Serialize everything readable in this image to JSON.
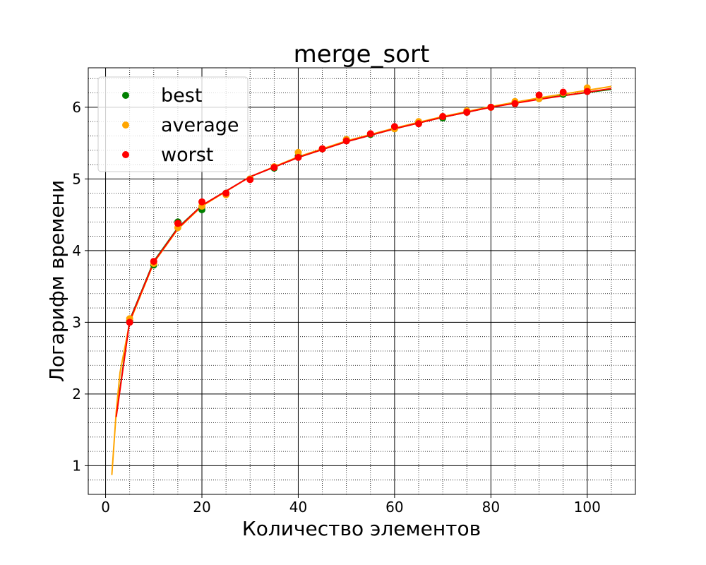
{
  "chart_data": {
    "type": "scatter",
    "title": "merge_sort",
    "xlabel": "Количество элементов",
    "ylabel": "Логарифм времени",
    "xlim": [
      -3.6,
      110
    ],
    "ylim": [
      0.6,
      6.55
    ],
    "x_ticks": [
      0,
      20,
      40,
      60,
      80,
      100
    ],
    "y_ticks": [
      1,
      2,
      3,
      4,
      5,
      6
    ],
    "x_tick_labels": [
      "0",
      "20",
      "40",
      "60",
      "80",
      "100"
    ],
    "y_tick_labels": [
      "1",
      "2",
      "3",
      "4",
      "5",
      "6"
    ],
    "grid": "major solid black, minor dotted black",
    "legend_position": "top-left",
    "series": [
      {
        "name": "best",
        "color": "#008000",
        "x": [
          5,
          10,
          15,
          20,
          25,
          30,
          35,
          40,
          45,
          50,
          55,
          60,
          65,
          70,
          75,
          80,
          85,
          90,
          95,
          100
        ],
        "y": [
          3.02,
          3.8,
          4.4,
          4.57,
          4.8,
          5.0,
          5.15,
          5.32,
          5.42,
          5.55,
          5.62,
          5.7,
          5.78,
          5.85,
          5.93,
          6.0,
          6.05,
          6.12,
          6.18,
          6.22
        ],
        "fit": {
          "x": [
            2.2,
            5,
            10,
            15,
            20,
            30,
            40,
            50,
            60,
            70,
            80,
            90,
            105
          ],
          "y": [
            1.7,
            3.03,
            3.85,
            4.32,
            4.63,
            5.03,
            5.3,
            5.52,
            5.7,
            5.86,
            6.0,
            6.12,
            6.25
          ]
        }
      },
      {
        "name": "average",
        "color": "#ffa500",
        "x": [
          5,
          10,
          15,
          20,
          25,
          30,
          35,
          40,
          45,
          50,
          55,
          60,
          65,
          70,
          75,
          80,
          85,
          90,
          95,
          100
        ],
        "y": [
          3.05,
          3.82,
          4.32,
          4.62,
          4.78,
          5.0,
          5.17,
          5.37,
          5.42,
          5.55,
          5.63,
          5.7,
          5.8,
          5.87,
          5.95,
          6.0,
          6.08,
          6.12,
          6.2,
          6.27
        ],
        "fit": {
          "x": [
            1.3,
            2.2,
            3,
            5,
            10,
            15,
            20,
            30,
            40,
            50,
            60,
            70,
            80,
            90,
            105
          ],
          "y": [
            0.87,
            1.75,
            2.3,
            3.0,
            3.83,
            4.3,
            4.62,
            5.03,
            5.31,
            5.53,
            5.71,
            5.87,
            6.01,
            6.13,
            6.29
          ]
        }
      },
      {
        "name": "worst",
        "color": "#ff0000",
        "x": [
          5,
          10,
          15,
          20,
          25,
          30,
          35,
          40,
          45,
          50,
          55,
          60,
          65,
          70,
          75,
          80,
          85,
          90,
          95,
          100
        ],
        "y": [
          3.0,
          3.85,
          4.38,
          4.68,
          4.8,
          4.99,
          5.16,
          5.3,
          5.42,
          5.53,
          5.63,
          5.73,
          5.77,
          5.87,
          5.93,
          6.0,
          6.05,
          6.17,
          6.21,
          6.22
        ],
        "fit": {
          "x": [
            2.2,
            5,
            10,
            15,
            20,
            30,
            40,
            50,
            60,
            70,
            80,
            90,
            105
          ],
          "y": [
            1.68,
            3.02,
            3.84,
            4.31,
            4.63,
            5.03,
            5.3,
            5.52,
            5.7,
            5.86,
            6.0,
            6.11,
            6.26
          ]
        }
      }
    ]
  }
}
